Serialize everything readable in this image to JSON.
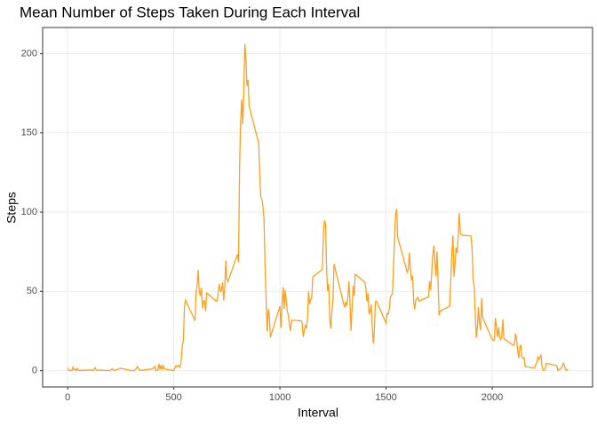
{
  "chart_data": {
    "type": "line",
    "title": "Mean Number of Steps Taken During Each Interval",
    "x_label": "Interval",
    "y_label": "Steps",
    "xlim": [
      -117.75,
      2472.75
    ],
    "xticks": [
      0,
      500,
      1000,
      1500,
      2000
    ],
    "ylim": [
      -10.3,
      216.5
    ],
    "yticks": [
      0,
      50,
      100,
      150,
      200
    ],
    "grid": true,
    "series": [
      {
        "color": "#ff9f1c",
        "x": [
          0,
          5,
          10,
          15,
          20,
          25,
          30,
          35,
          40,
          45,
          50,
          55,
          100,
          105,
          110,
          115,
          120,
          125,
          130,
          135,
          140,
          145,
          150,
          200,
          210,
          220,
          250,
          300,
          315,
          330,
          335,
          345,
          400,
          410,
          415,
          420,
          425,
          430,
          435,
          440,
          445,
          450,
          455,
          500,
          505,
          510,
          515,
          520,
          525,
          530,
          535,
          540,
          545,
          550,
          555,
          600,
          605,
          610,
          615,
          620,
          625,
          630,
          635,
          640,
          645,
          650,
          655,
          700,
          705,
          710,
          715,
          720,
          725,
          730,
          735,
          740,
          745,
          750,
          755,
          800,
          805,
          810,
          815,
          820,
          825,
          830,
          835,
          840,
          845,
          850,
          855,
          900,
          905,
          910,
          915,
          920,
          925,
          930,
          935,
          940,
          945,
          950,
          955,
          1000,
          1005,
          1010,
          1015,
          1020,
          1025,
          1030,
          1035,
          1040,
          1045,
          1050,
          1055,
          1100,
          1105,
          1110,
          1115,
          1120,
          1125,
          1130,
          1135,
          1140,
          1145,
          1150,
          1155,
          1200,
          1205,
          1210,
          1215,
          1220,
          1225,
          1230,
          1235,
          1240,
          1245,
          1250,
          1255,
          1300,
          1305,
          1310,
          1315,
          1320,
          1325,
          1330,
          1335,
          1340,
          1345,
          1350,
          1355,
          1400,
          1405,
          1410,
          1415,
          1420,
          1425,
          1430,
          1435,
          1440,
          1445,
          1450,
          1455,
          1500,
          1505,
          1510,
          1515,
          1520,
          1525,
          1530,
          1535,
          1540,
          1545,
          1550,
          1555,
          1600,
          1605,
          1610,
          1615,
          1620,
          1625,
          1630,
          1635,
          1640,
          1645,
          1650,
          1655,
          1700,
          1705,
          1710,
          1715,
          1720,
          1725,
          1730,
          1735,
          1740,
          1745,
          1750,
          1755,
          1800,
          1805,
          1810,
          1815,
          1820,
          1825,
          1830,
          1835,
          1840,
          1845,
          1850,
          1855,
          1900,
          1905,
          1910,
          1915,
          1920,
          1925,
          1930,
          1935,
          1940,
          1945,
          1950,
          1955,
          2000,
          2005,
          2010,
          2015,
          2020,
          2025,
          2030,
          2035,
          2040,
          2045,
          2050,
          2055,
          2100,
          2105,
          2110,
          2115,
          2120,
          2125,
          2130,
          2135,
          2140,
          2145,
          2150,
          2155,
          2200,
          2205,
          2210,
          2215,
          2220,
          2225,
          2230,
          2235,
          2240,
          2245,
          2250,
          2255,
          2300,
          2305,
          2310,
          2315,
          2320,
          2325,
          2330,
          2335,
          2340,
          2345,
          2350,
          2355
        ],
        "values": [
          1.7,
          0.3,
          0.1,
          0.2,
          0,
          2.1,
          0.5,
          0.9,
          0,
          1.5,
          0.3,
          0.1,
          0.3,
          0.7,
          0.2,
          0.3,
          0,
          1.1,
          1.8,
          0.2,
          0.2,
          0.4,
          0.3,
          0,
          1.1,
          0,
          1.5,
          0,
          0,
          2.6,
          0.7,
          0.1,
          1.2,
          2.6,
          0,
          0.3,
          0.4,
          4.1,
          0.7,
          3.5,
          0.8,
          3.1,
          1.1,
          0,
          1.6,
          3.0,
          2.2,
          3.3,
          3.0,
          2.1,
          6.1,
          16.0,
          18.3,
          39.5,
          44.5,
          31.5,
          49.3,
          53.8,
          63.5,
          50.0,
          47.1,
          52.2,
          39.3,
          44.0,
          44.2,
          37.4,
          49.0,
          43.8,
          44.4,
          50.5,
          54.5,
          49.9,
          50.8,
          55.7,
          44.3,
          52.3,
          69.5,
          57.8,
          56.2,
          73.4,
          68.2,
          129.4,
          157.5,
          171.2,
          155.4,
          177.3,
          206.2,
          195.9,
          179.6,
          183.4,
          167.0,
          143.5,
          124.0,
          109.1,
          108.1,
          103.7,
          95.97,
          66.2,
          45.2,
          24.8,
          38.8,
          35.0,
          21.1,
          40.6,
          26.98,
          42.4,
          52.7,
          38.9,
          50.8,
          44.3,
          37.4,
          34.7,
          28.3,
          25.1,
          31.9,
          31.4,
          29.7,
          21.3,
          25.5,
          28.4,
          26.5,
          33.4,
          50.0,
          42.0,
          44.6,
          46.0,
          59.2,
          63.9,
          87.7,
          94.8,
          92.8,
          63.4,
          50.2,
          54.5,
          32.4,
          26.5,
          37.7,
          45.1,
          67.3,
          42.3,
          39.9,
          43.3,
          40.98,
          46.2,
          56.4,
          42.8,
          25.1,
          39.97,
          53.5,
          47.3,
          60.8,
          55.8,
          51.96,
          43.6,
          48.7,
          35.5,
          37.5,
          41.8,
          27.5,
          17.1,
          26.1,
          43.6,
          43.8,
          30.0,
          36.1,
          35.5,
          38.8,
          45.96,
          47.8,
          48.1,
          65.3,
          82.9,
          98.7,
          102.1,
          83.96,
          62.1,
          64.1,
          74.5,
          63.2,
          56.9,
          59.8,
          43.9,
          38.6,
          44.7,
          45.5,
          46.2,
          43.7,
          46.6,
          56.3,
          50.7,
          61.2,
          72.7,
          78.9,
          68.9,
          59.7,
          75.1,
          56.5,
          34.8,
          37.5,
          40.7,
          58.0,
          74.7,
          85.3,
          59.3,
          67.8,
          77.7,
          74.2,
          85.3,
          99.5,
          86.6,
          85.6,
          84.9,
          77.8,
          58.0,
          53.4,
          36.3,
          20.7,
          27.4,
          40.0,
          30.2,
          25.5,
          45.7,
          33.5,
          19.6,
          19.0,
          19.3,
          33.3,
          26.8,
          21.2,
          27.3,
          21.3,
          19.5,
          21.3,
          32.3,
          20.2,
          15.9,
          17.2,
          23.5,
          19.2,
          12.5,
          8.0,
          14.7,
          16.3,
          8.7,
          7.8,
          8.1,
          2.6,
          1.5,
          3.7,
          4.8,
          8.5,
          7.1,
          8.7,
          9.8,
          2.2,
          0.3,
          0.1,
          1.6,
          4.6,
          3.3,
          2.8,
          0,
          0.8,
          1.0,
          1.6,
          2.6,
          4.7,
          3.3,
          0.6,
          0.2,
          1.1
        ]
      }
    ]
  }
}
